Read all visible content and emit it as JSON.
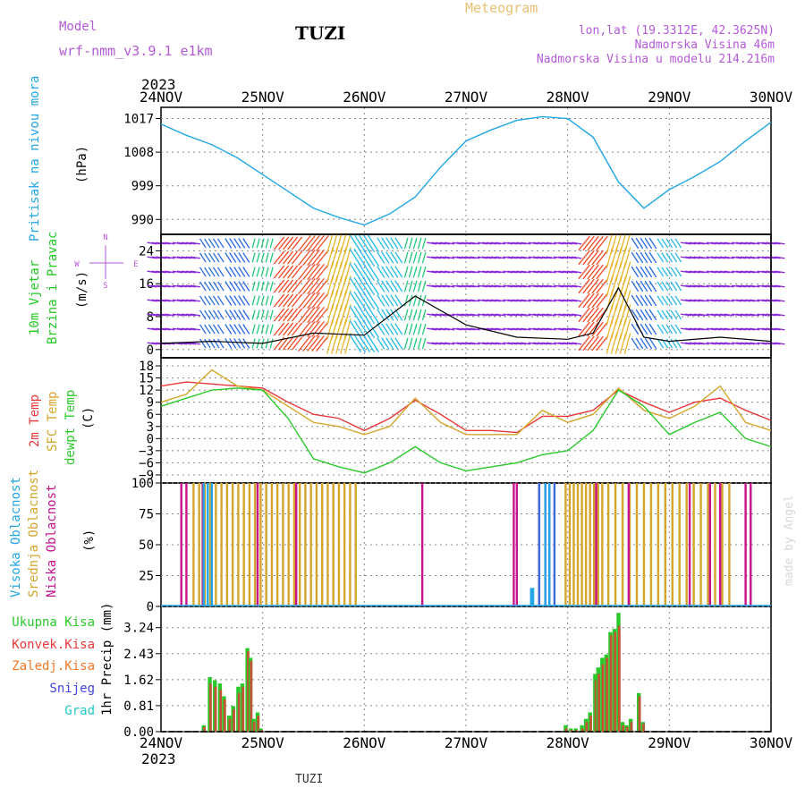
{
  "header": {
    "model_label": "Model",
    "model_name": "wrf-nmm_v3.9.1 e1km",
    "station": "TUZI",
    "meteogram": "Meteogram",
    "lonlat": "lon,lat (19.3312E, 42.3625N)",
    "altitude": "Nadmorska Visina 46m",
    "model_altitude": "Nadmorska Visina u modelu 214.216m",
    "year_top": "2023",
    "year_bottom": "2023",
    "footer_station": "TUZI",
    "credit": "made by Angel"
  },
  "colors": {
    "pressure": "#22a6e6",
    "temp2m": "#e8383a",
    "sfc": "#d4a52a",
    "dewpt": "#2ac82a",
    "high_cloud": "#22a6e6",
    "mid_cloud": "#d4a52a",
    "low_cloud": "#c8148c",
    "blue_cloud": "#3a6adc",
    "precip_total": "#2ac82a",
    "precip_conv": "#e8383a",
    "precip_frz": "#f07a28",
    "snow": "#4444dd",
    "grad": "#22c8c8",
    "wind_label": "#22c822",
    "legend_purple": "#b45ad8",
    "meteogram_title": "#e8c070"
  },
  "chart_data": [
    {
      "type": "line",
      "panel": "pressure",
      "title": "Pritisak na nivou mora",
      "ylabel": "(hPa)",
      "x_ticks": [
        "24NOV",
        "25NOV",
        "26NOV",
        "27NOV",
        "28NOV",
        "29NOV",
        "30NOV"
      ],
      "y_ticks": [
        990,
        999,
        1008,
        1017
      ],
      "ylim": [
        986,
        1020
      ],
      "x": [
        0,
        0.25,
        0.5,
        0.75,
        1,
        1.25,
        1.5,
        1.75,
        2,
        2.25,
        2.5,
        2.75,
        3,
        3.25,
        3.5,
        3.75,
        4,
        4.25,
        4.5,
        4.75,
        5,
        5.25,
        5.5,
        5.75,
        6
      ],
      "series": [
        {
          "name": "Pritisak na nivou mora",
          "values": [
            1015.5,
            1012.5,
            1010,
            1006.5,
            1002,
            997.5,
            993,
            990.5,
            988.5,
            991.5,
            996,
            1004,
            1011,
            1014,
            1016.5,
            1017.5,
            1017,
            1012,
            1000,
            993,
            998,
            1001.5,
            1005.5,
            1011,
            1016
          ]
        }
      ]
    },
    {
      "type": "line",
      "panel": "wind",
      "title": "10m Vjetar",
      "title2": "Brzina i Pravac",
      "ylabel": "(m/s)",
      "y_ticks": [
        0,
        8,
        16,
        24
      ],
      "ylim": [
        -2,
        28
      ],
      "compass": {
        "n": "N",
        "s": "S",
        "e": "E",
        "w": "W"
      },
      "x": [
        0,
        0.5,
        1,
        1.5,
        2,
        2.5,
        3,
        3.5,
        4,
        4.25,
        4.5,
        4.75,
        5,
        5.5,
        6
      ],
      "series": [
        {
          "name": "Brzina",
          "values": [
            1.5,
            2,
            1.5,
            4,
            3.5,
            13,
            6,
            3,
            2.5,
            4,
            15,
            3,
            2,
            3,
            2
          ]
        }
      ],
      "barbs": {
        "x": [
          0,
          0.25,
          0.5,
          0.75,
          1,
          1.25,
          1.5,
          1.75,
          2,
          2.25,
          2.5,
          2.75,
          3,
          3.25,
          3.5,
          3.75,
          4,
          4.25,
          4.5,
          4.75,
          5,
          5.25,
          5.5,
          5.75,
          6
        ],
        "speed": [
          3,
          3,
          4,
          5,
          3,
          10,
          14,
          16,
          15,
          7,
          5,
          3,
          3,
          3,
          3,
          3,
          3,
          12,
          16,
          6,
          4,
          4,
          3,
          3,
          3
        ],
        "color_class": [
          "purple",
          "purple",
          "blue",
          "blue",
          "green",
          "red",
          "red",
          "yellow",
          "cyan",
          "cyan",
          "green",
          "purple",
          "purple",
          "purple",
          "purple",
          "purple",
          "purple",
          "red",
          "yellow",
          "blue",
          "cyan",
          "purple",
          "purple",
          "purple",
          "purple"
        ]
      }
    },
    {
      "type": "line",
      "panel": "temperature",
      "labels": [
        "2m Temp",
        "SFC Temp",
        "dewpt Temp"
      ],
      "ylabel": "(C)",
      "y_ticks": [
        -9,
        -6,
        -3,
        0,
        3,
        6,
        9,
        12,
        15,
        18
      ],
      "ylim": [
        -11,
        20
      ],
      "x": [
        0,
        0.25,
        0.5,
        0.75,
        1,
        1.25,
        1.5,
        1.75,
        2,
        2.25,
        2.5,
        2.75,
        3,
        3.25,
        3.5,
        3.75,
        4,
        4.25,
        4.5,
        4.75,
        5,
        5.25,
        5.5,
        5.75,
        6
      ],
      "series": [
        {
          "name": "2m Temp",
          "values": [
            13,
            14,
            13.5,
            13,
            12.5,
            9,
            6,
            5,
            2,
            5,
            9.5,
            6,
            2,
            2,
            1.5,
            5.5,
            5.5,
            7,
            12,
            9,
            6.5,
            9,
            10,
            7,
            4.5
          ]
        },
        {
          "name": "SFC Temp",
          "values": [
            9,
            11,
            17,
            13,
            12,
            8,
            4,
            3,
            1,
            3,
            10,
            4,
            1,
            1,
            1,
            7,
            4,
            6,
            12.5,
            7,
            5,
            8,
            13,
            4,
            2
          ]
        },
        {
          "name": "dewpt Temp",
          "values": [
            8,
            10,
            12,
            12.5,
            12,
            5,
            -5,
            -7,
            -8.5,
            -6,
            -2,
            -6,
            -8,
            -7,
            -6,
            -4,
            -3,
            2,
            12,
            8,
            1,
            4,
            6.5,
            0,
            -2
          ]
        }
      ]
    },
    {
      "type": "bar",
      "panel": "clouds",
      "labels": [
        "Visoka Oblacnost",
        "Srednja Oblacnost",
        "Niska Oblacnost"
      ],
      "ylabel": "(%)",
      "y_ticks": [
        0,
        25,
        50,
        75,
        100
      ],
      "ylim": [
        0,
        100
      ]
    },
    {
      "type": "bar",
      "panel": "precip",
      "labels": [
        "Ukupna Kisa",
        "Konvek.Kisa",
        "Zaledj.Kisa",
        "Snijeg",
        "Grad"
      ],
      "ylabel": "1hr Precip (mm)",
      "y_ticks": [
        0,
        0.81,
        1.62,
        2.43,
        3.24
      ],
      "ylim": [
        0,
        3.9
      ],
      "x": [
        0.42,
        0.48,
        0.53,
        0.58,
        0.62,
        0.67,
        0.71,
        0.76,
        0.8,
        0.85,
        0.88,
        0.91,
        0.95,
        0.98,
        3.98,
        4.03,
        4.08,
        4.14,
        4.18,
        4.22,
        4.27,
        4.3,
        4.34,
        4.38,
        4.42,
        4.46,
        4.5,
        4.54,
        4.58,
        4.62,
        4.7,
        4.74
      ],
      "series": [
        {
          "name": "Ukupna Kisa",
          "values": [
            0.2,
            1.7,
            1.6,
            1.5,
            1.1,
            0.5,
            0.8,
            1.4,
            1.5,
            2.6,
            2.3,
            0.4,
            0.6,
            0.1,
            0.2,
            0.1,
            0.1,
            0.2,
            0.4,
            0.6,
            1.8,
            2.0,
            2.3,
            2.4,
            3.1,
            3.2,
            3.7,
            0.3,
            0.2,
            0.4,
            1.2,
            0.3
          ]
        },
        {
          "name": "Konvek.Kisa",
          "values": [
            0.15,
            1.5,
            1.4,
            1.3,
            1.0,
            0.4,
            0.7,
            1.2,
            1.4,
            2.5,
            2.2,
            0.3,
            0.5,
            0.05,
            0.1,
            0.05,
            0.05,
            0.1,
            0.3,
            0.5,
            1.6,
            1.8,
            2.1,
            2.3,
            3.0,
            3.1,
            3.3,
            0.2,
            0.15,
            0.3,
            1.1,
            0.25
          ]
        }
      ]
    }
  ]
}
